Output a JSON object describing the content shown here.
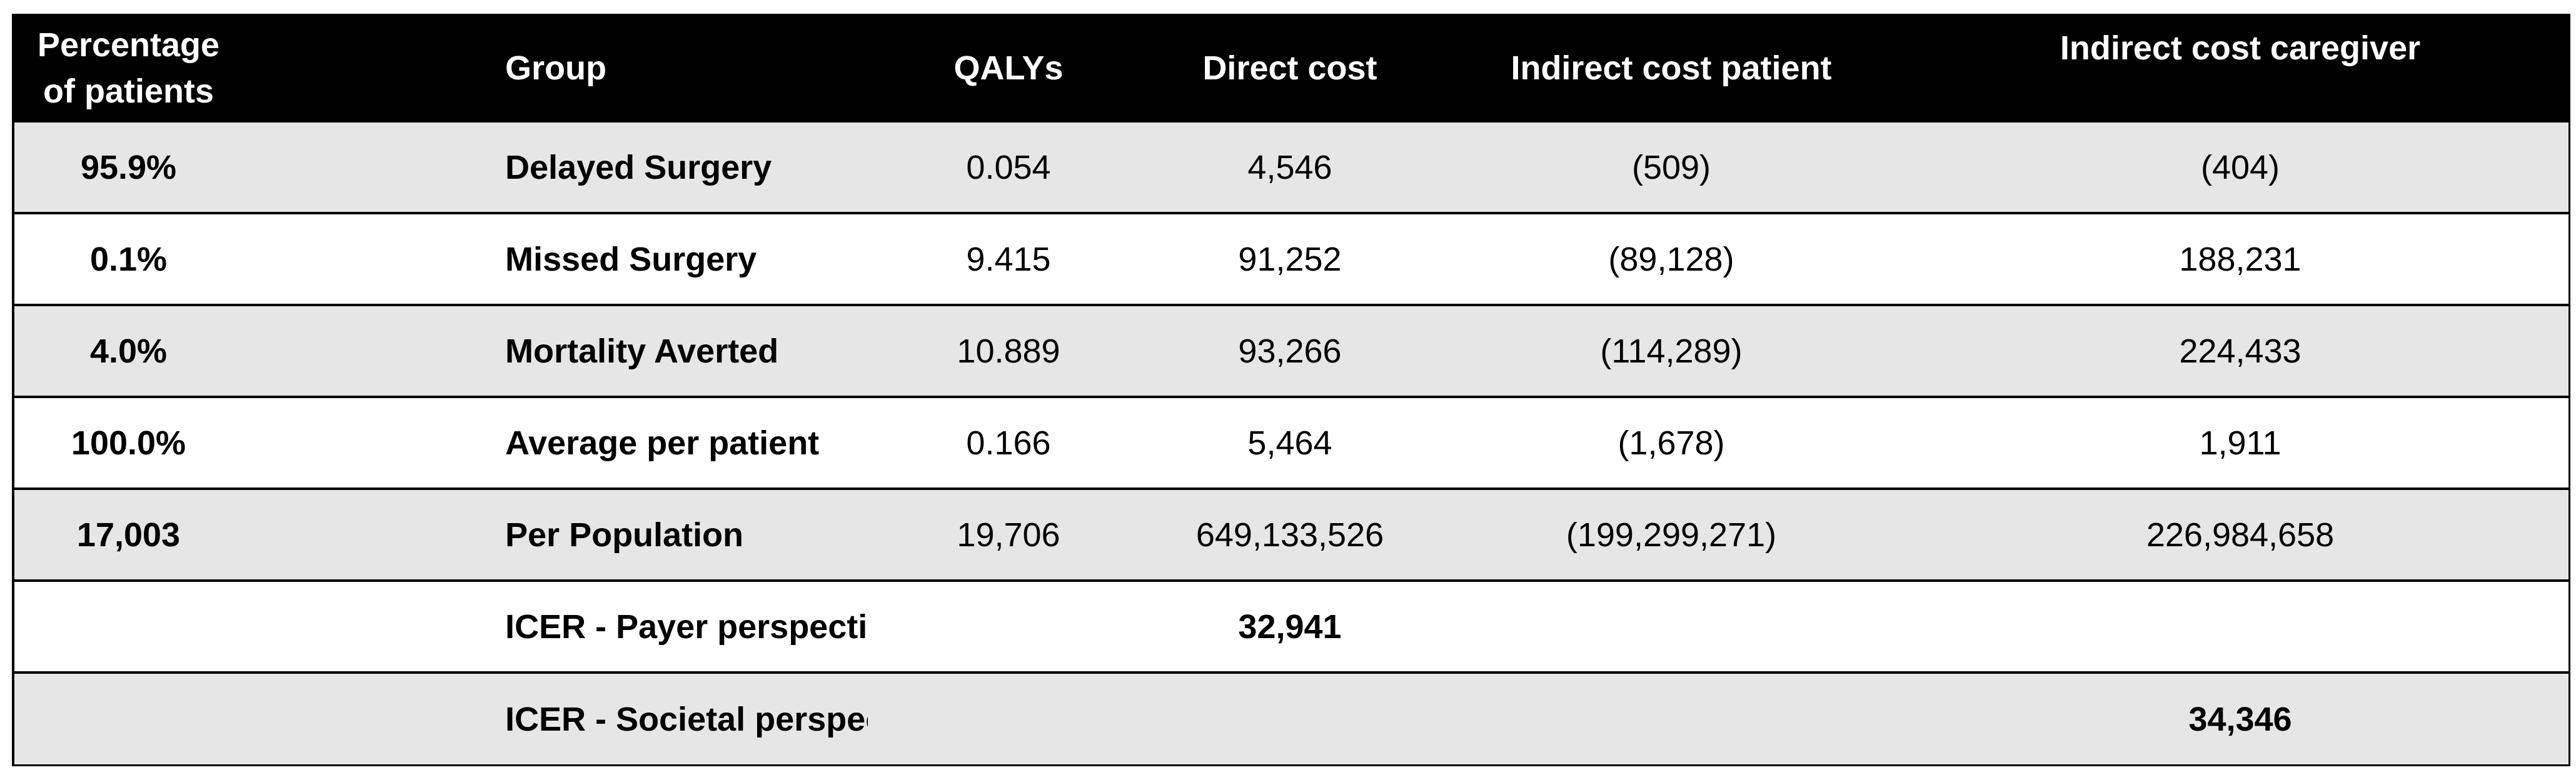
{
  "header": {
    "percentage": "Percentage of patients",
    "group": "Group",
    "qalys": "QALYs",
    "direct_cost": "Direct cost",
    "indirect_patient": "Indirect cost patient",
    "indirect_caregiver": "Indirect cost caregiver"
  },
  "rows": [
    {
      "percentage": "95.9%",
      "group": "Delayed Surgery",
      "qalys": "0.054",
      "direct_cost": "4,546",
      "indirect_patient": "(509)",
      "indirect_caregiver": "(404)"
    },
    {
      "percentage": "0.1%",
      "group": "Missed Surgery",
      "qalys": "9.415",
      "direct_cost": "91,252",
      "indirect_patient": "(89,128)",
      "indirect_caregiver": "188,231"
    },
    {
      "percentage": "4.0%",
      "group": "Mortality Averted",
      "qalys": "10.889",
      "direct_cost": "93,266",
      "indirect_patient": "(114,289)",
      "indirect_caregiver": "224,433"
    },
    {
      "percentage": "100.0%",
      "group": "Average per patient",
      "qalys": "0.166",
      "direct_cost": "5,464",
      "indirect_patient": "(1,678)",
      "indirect_caregiver": "1,911"
    },
    {
      "percentage": "17,003",
      "group": "Per Population",
      "qalys": "19,706",
      "direct_cost": "649,133,526",
      "indirect_patient": "(199,299,271)",
      "indirect_caregiver": "226,984,658"
    },
    {
      "percentage": "",
      "group": "ICER - Payer perspective",
      "qalys": "",
      "direct_cost": "32,941",
      "indirect_patient": "",
      "indirect_caregiver": ""
    },
    {
      "percentage": "",
      "group": "ICER - Societal perspective",
      "qalys": "",
      "direct_cost": "",
      "indirect_patient": "",
      "indirect_caregiver": "34,346"
    }
  ],
  "colors": {
    "header_bg": "#000000",
    "header_text": "#ffffff",
    "row_shaded": "#e6e6e6",
    "row_plain": "#ffffff",
    "border": "#000000"
  }
}
